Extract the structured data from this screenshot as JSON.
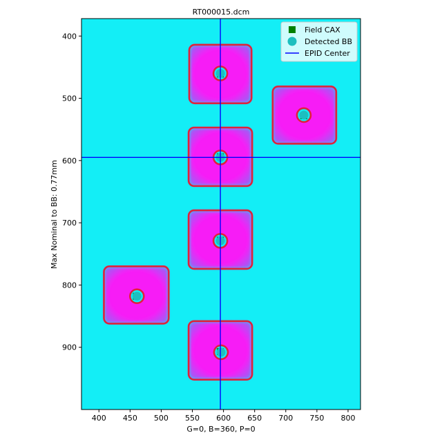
{
  "chart_data": {
    "type": "scatter",
    "title": "RT000015.dcm",
    "xlabel": "G=0, B=360, P=0",
    "ylabel": "Max Nominal to BB: 0.77mm",
    "xlim": [
      372,
      820
    ],
    "ylim": [
      1000,
      372
    ],
    "y_inverted": true,
    "xticks": [
      400,
      450,
      500,
      550,
      600,
      650,
      700,
      750,
      800
    ],
    "yticks": [
      400,
      500,
      600,
      700,
      800,
      900
    ],
    "grid": false,
    "legend_position": "top-right",
    "background_color": "#13eef6",
    "field_color": "#f71ef6",
    "outline_color": "#e0213a",
    "legend": [
      {
        "name": "Field CAX",
        "marker": "square",
        "color": "#008000"
      },
      {
        "name": "Detected BB",
        "marker": "circle",
        "color": "#1dbfbf"
      },
      {
        "name": "EPID Center",
        "marker": "line",
        "color": "#0000ff"
      }
    ],
    "epid_center": {
      "x": 595,
      "y": 595
    },
    "fields": [
      {
        "cx": 595,
        "cy": 461,
        "w": 100,
        "h": 94
      },
      {
        "cx": 730,
        "cy": 527,
        "w": 102,
        "h": 92
      },
      {
        "cx": 595,
        "cy": 594,
        "w": 102,
        "h": 94
      },
      {
        "cx": 595,
        "cy": 727,
        "w": 102,
        "h": 94
      },
      {
        "cx": 460,
        "cy": 816,
        "w": 104,
        "h": 92
      },
      {
        "cx": 595,
        "cy": 905,
        "w": 102,
        "h": 94
      }
    ],
    "field_cax": [
      {
        "x": 595,
        "y": 461
      },
      {
        "x": 729,
        "y": 528
      },
      {
        "x": 595,
        "y": 594
      },
      {
        "x": 595,
        "y": 728
      },
      {
        "x": 460,
        "y": 818
      },
      {
        "x": 595,
        "y": 907
      }
    ],
    "detected_bb": [
      {
        "x": 595,
        "y": 460
      },
      {
        "x": 729,
        "y": 527
      },
      {
        "x": 595,
        "y": 595
      },
      {
        "x": 595,
        "y": 729
      },
      {
        "x": 461,
        "y": 818
      },
      {
        "x": 596,
        "y": 908
      }
    ]
  }
}
